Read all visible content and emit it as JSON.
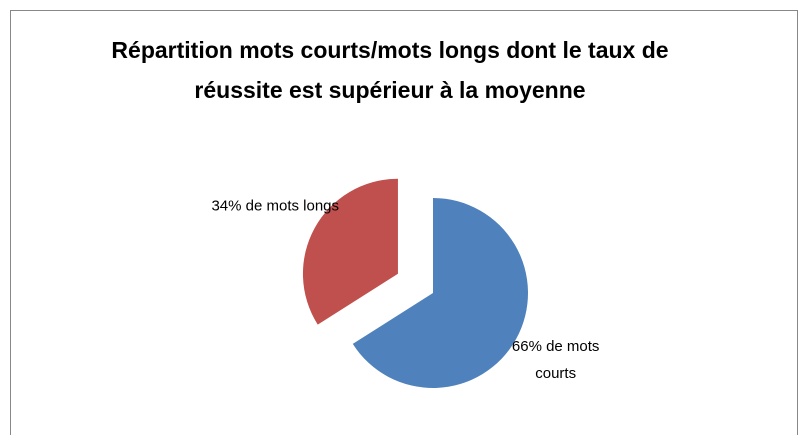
{
  "chart_data": {
    "type": "pie",
    "title": "Répartition mots courts/mots longs dont le taux de réussite est supérieur à la moyenne",
    "values": [
      66,
      34
    ],
    "value_labels": [
      "66% de mots courts",
      "34% de mots longs"
    ],
    "colors": [
      "#4f81bd",
      "#c0504d"
    ],
    "exploded": [
      false,
      true
    ]
  }
}
